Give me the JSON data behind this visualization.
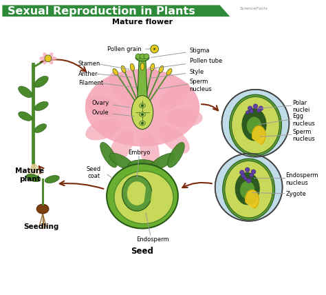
{
  "title": "Sexual Reproduction in Plants",
  "title_bg": "#2e8b3a",
  "title_color": "#ffffff",
  "bg_color": "#ffffff",
  "labels": {
    "mature_flower": "Mature flower",
    "pollen_grain": "Pollen grain",
    "stamen": "Stamen",
    "anther": "Anther",
    "filament": "Filament",
    "stigma": "Stigma",
    "pollen_tube": "Pollen tube",
    "style": "Style",
    "sperm_nucleus_top": "Sperm\nnucleus",
    "ovary": "Ovary",
    "ovule": "Ovule",
    "mature_plant": "Mature\nplant",
    "polar_nuclei": "Polar\nnuclei",
    "egg_nucleus": "Egg\nnucleus",
    "sperm_nucleus_right": "Sperm\nnucleus",
    "endosperm_nucleus": "Endosperm\nnucleus",
    "zygote": "Zygote",
    "embryo": "Embryo",
    "seed_coat": "Seed\ncoat",
    "endosperm": "Endosperm",
    "seed": "Seed",
    "seedling": "Seedling"
  },
  "colors": {
    "flower_petal": "#f5a8b8",
    "stem_green": "#4a8a2a",
    "light_green": "#7ab840",
    "yellow": "#e8c820",
    "dark_green": "#2a5a18",
    "ovary_fill": "#c8d858",
    "cell_bg": "#c0dce8",
    "cell_outer_green": "#5a9a38",
    "cell_inner_green": "#c8d858",
    "cell_dark": "#2d5a20",
    "seed_outer_green": "#6ab030",
    "seed_inner_light": "#c8d858",
    "arrow_color": "#7a2a08",
    "purple_dot": "#6040a0",
    "purple_small": "#a040a0",
    "label_line": "#999999",
    "root_color": "#d4c080"
  }
}
